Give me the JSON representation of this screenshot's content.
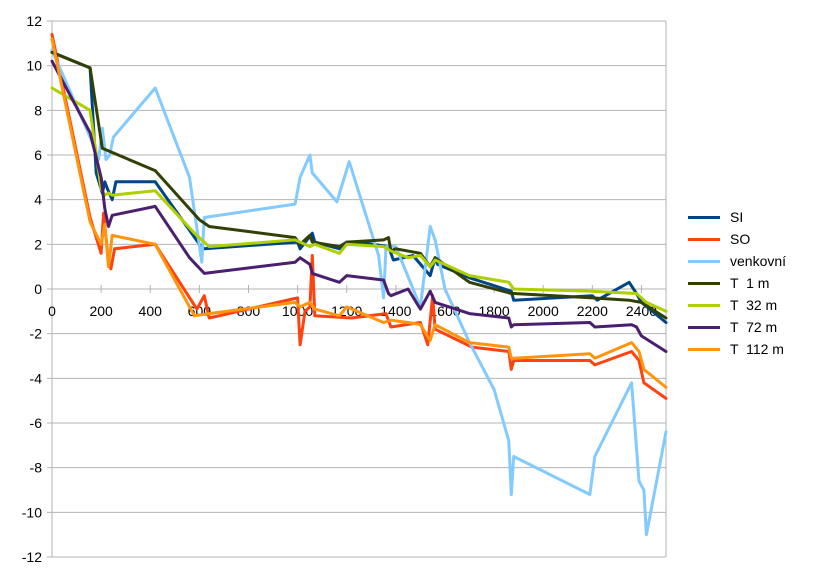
{
  "chart_data": {
    "type": "line",
    "title": "",
    "xlabel": "",
    "ylabel": "",
    "xlim": [
      0,
      2500
    ],
    "ylim": [
      -12,
      12
    ],
    "x_ticks": [
      0,
      200,
      400,
      600,
      800,
      1000,
      1200,
      1400,
      1600,
      1800,
      2000,
      2200,
      2400
    ],
    "y_ticks": [
      -12,
      -10,
      -8,
      -6,
      -4,
      -2,
      0,
      2,
      4,
      6,
      8,
      10,
      12
    ],
    "grid": "horizontal",
    "legend": "right",
    "series": [
      {
        "name": "SI",
        "color": "#004586",
        "x": [
          0,
          155,
          180,
          205,
          215,
          225,
          245,
          260,
          420,
          600,
          620,
          1000,
          1010,
          1060,
          1070,
          1170,
          1200,
          1250,
          1370,
          1390,
          1470,
          1540,
          1560,
          1570,
          1700,
          1870,
          1880,
          2200,
          2220,
          2350,
          2380,
          2400,
          2500
        ],
        "y": [
          10.6,
          9.9,
          5.2,
          4.3,
          4.8,
          4.5,
          4.0,
          4.8,
          4.8,
          2.0,
          1.8,
          2.1,
          1.8,
          2.5,
          2.1,
          1.8,
          2.1,
          2.1,
          1.9,
          1.3,
          1.5,
          0.6,
          1.4,
          1.1,
          0.5,
          -0.1,
          -0.5,
          -0.3,
          -0.5,
          0.3,
          -0.2,
          -0.6,
          -1.5
        ]
      },
      {
        "name": "SO",
        "color": "#ff420e",
        "x": [
          0,
          155,
          200,
          210,
          230,
          240,
          255,
          420,
          590,
          620,
          640,
          1000,
          1010,
          1030,
          1050,
          1060,
          1070,
          1220,
          1360,
          1380,
          1500,
          1530,
          1550,
          1560,
          1710,
          1860,
          1870,
          1880,
          2190,
          2210,
          2360,
          2390,
          2410,
          2500
        ],
        "y": [
          11.4,
          3.2,
          1.6,
          3.4,
          1.2,
          0.9,
          1.8,
          2.0,
          -0.9,
          -0.3,
          -1.3,
          -0.4,
          -2.5,
          -1.0,
          -0.8,
          1.5,
          -1.2,
          -1.3,
          -1.1,
          -1.7,
          -1.5,
          -2.5,
          -0.3,
          -1.8,
          -2.6,
          -2.8,
          -3.6,
          -3.2,
          -3.2,
          -3.4,
          -2.8,
          -3.2,
          -4.2,
          -4.9
        ]
      },
      {
        "name": "venkovní",
        "color": "#83caff",
        "x": [
          0,
          155,
          190,
          205,
          220,
          235,
          250,
          420,
          560,
          610,
          620,
          990,
          1010,
          1050,
          1060,
          1160,
          1210,
          1330,
          1350,
          1360,
          1400,
          1500,
          1540,
          1560,
          1600,
          1700,
          1800,
          1860,
          1870,
          1880,
          2190,
          2210,
          2360,
          2390,
          2410,
          2420,
          2500
        ],
        "y": [
          10.7,
          6.8,
          5.8,
          7.2,
          5.8,
          6.0,
          6.8,
          9.0,
          5.0,
          1.2,
          3.2,
          3.8,
          5.0,
          6.0,
          5.2,
          3.9,
          5.7,
          1.5,
          -0.4,
          1.9,
          1.9,
          -0.8,
          2.8,
          2.2,
          0.0,
          -2.4,
          -4.5,
          -6.8,
          -9.2,
          -7.5,
          -9.2,
          -7.5,
          -4.2,
          -8.6,
          -9.0,
          -11.0,
          -6.4
        ]
      },
      {
        "name": "T  1 m",
        "color": "#314004",
        "x": [
          0,
          155,
          205,
          420,
          600,
          640,
          990,
          1010,
          1050,
          1060,
          1170,
          1200,
          1350,
          1370,
          1380,
          1400,
          1500,
          1540,
          1560,
          1700,
          1870,
          1880,
          2200,
          2350,
          2400,
          2500
        ],
        "y": [
          10.6,
          9.9,
          6.3,
          5.3,
          3.1,
          2.8,
          2.3,
          2.0,
          2.4,
          2.1,
          1.9,
          2.1,
          2.2,
          2.3,
          1.7,
          1.8,
          1.6,
          1.0,
          1.4,
          0.3,
          -0.2,
          -0.2,
          -0.4,
          -0.5,
          -0.6,
          -1.3
        ]
      },
      {
        "name": "T  32 m",
        "color": "#aecf00",
        "x": [
          0,
          155,
          200,
          215,
          230,
          245,
          420,
          580,
          640,
          990,
          1010,
          1050,
          1070,
          1170,
          1200,
          1350,
          1380,
          1450,
          1500,
          1540,
          1560,
          1700,
          1860,
          1880,
          2200,
          2380,
          2420,
          2500
        ],
        "y": [
          9.0,
          8.0,
          4.5,
          4.2,
          4.3,
          4.2,
          4.4,
          2.5,
          1.9,
          2.2,
          2.1,
          1.9,
          2.0,
          1.6,
          2.0,
          1.9,
          1.7,
          1.4,
          1.5,
          1.0,
          1.3,
          0.6,
          0.3,
          0.0,
          -0.1,
          -0.2,
          -0.6,
          -1.0
        ]
      },
      {
        "name": "T  72 m",
        "color": "#4b1f6f",
        "x": [
          0,
          155,
          200,
          215,
          230,
          245,
          420,
          560,
          620,
          990,
          1010,
          1050,
          1060,
          1170,
          1200,
          1350,
          1370,
          1380,
          1450,
          1500,
          1540,
          1560,
          1700,
          1860,
          1870,
          1880,
          2190,
          2210,
          2360,
          2380,
          2400,
          2500
        ],
        "y": [
          10.2,
          7.0,
          5.0,
          3.6,
          2.8,
          3.3,
          3.7,
          1.4,
          0.7,
          1.2,
          1.4,
          1.1,
          0.7,
          0.3,
          0.6,
          0.4,
          -0.2,
          -0.3,
          0.0,
          -0.9,
          -0.1,
          -0.6,
          -1.1,
          -1.3,
          -1.7,
          -1.6,
          -1.5,
          -1.7,
          -1.6,
          -1.7,
          -2.1,
          -2.8
        ]
      },
      {
        "name": "T  112 m",
        "color": "#ff950e",
        "x": [
          0,
          155,
          200,
          215,
          230,
          245,
          420,
          580,
          640,
          990,
          1010,
          1050,
          1070,
          1170,
          1200,
          1350,
          1380,
          1450,
          1500,
          1540,
          1560,
          1700,
          1860,
          1870,
          1880,
          2190,
          2210,
          2360,
          2390,
          2410,
          2500
        ],
        "y": [
          11.2,
          3.0,
          2.0,
          2.9,
          1.0,
          2.4,
          2.0,
          -1.2,
          -1.1,
          -0.6,
          -0.8,
          -0.6,
          -0.9,
          -1.2,
          -0.8,
          -1.5,
          -1.4,
          -1.5,
          -1.6,
          -2.3,
          -1.6,
          -2.4,
          -2.6,
          -3.1,
          -3.1,
          -2.9,
          -3.1,
          -2.4,
          -2.8,
          -3.6,
          -4.4
        ]
      }
    ]
  }
}
